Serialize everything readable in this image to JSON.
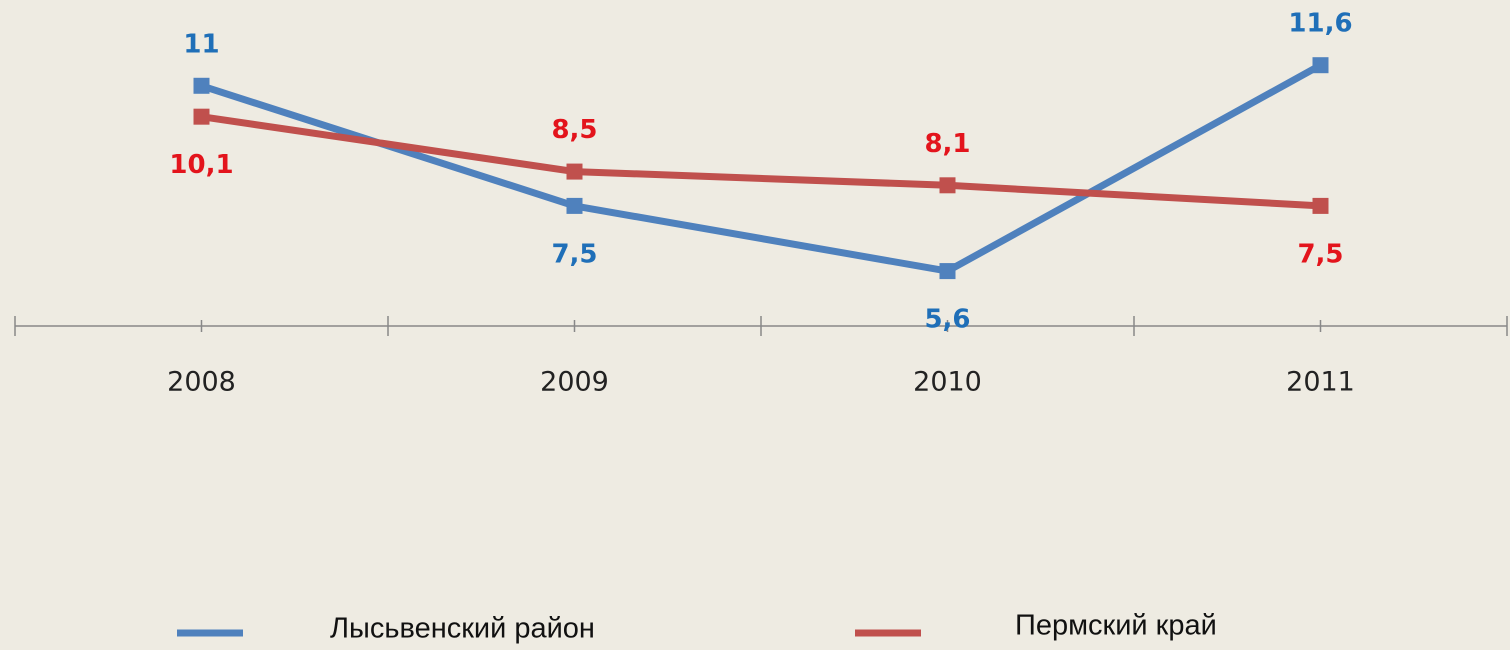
{
  "chart_data": {
    "type": "line",
    "categories": [
      "2008",
      "2009",
      "2010",
      "2011"
    ],
    "series": [
      {
        "name": "Лысьвенский район",
        "color": "#4f81bd",
        "values": [
          11,
          7.5,
          5.6,
          11.6
        ],
        "value_labels": [
          "11",
          "7,5",
          "5,6",
          "11,6"
        ]
      },
      {
        "name": "Пермский край",
        "color": "#c0504d",
        "values": [
          10.1,
          8.5,
          8.1,
          7.5
        ],
        "value_labels": [
          "10,1",
          "8,5",
          "8,1",
          "7,5"
        ]
      }
    ],
    "ylim": [
      4,
      13.5
    ]
  }
}
